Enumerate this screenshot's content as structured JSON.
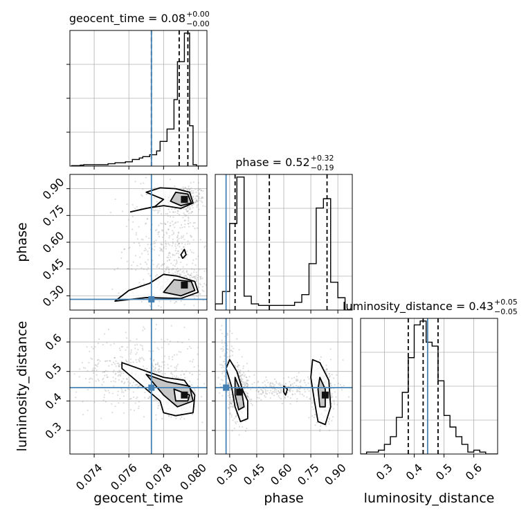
{
  "chart_data": {
    "type": "corner",
    "parameters": [
      {
        "name": "geocent_time",
        "label": "geocent_time",
        "range": [
          0.0726,
          0.0805
        ],
        "ticks": [
          0.074,
          0.076,
          0.078,
          0.08
        ],
        "tick_labels": [
          "0.074",
          "0.076",
          "0.078",
          "0.080"
        ],
        "truth": 0.0773,
        "quantiles": [
          0.0773,
          0.0789,
          0.0794
        ],
        "title_main": "geocent_time = 0.08",
        "title_plus": "+0.00",
        "title_minus": "−0.00",
        "hist_edges": [
          0.0727,
          0.0732,
          0.0734,
          0.0748,
          0.0752,
          0.0758,
          0.0762,
          0.0766,
          0.0768,
          0.0772,
          0.0776,
          0.0778,
          0.0782,
          0.0786,
          0.0788,
          0.0792,
          0.0795,
          0.0797,
          0.0799,
          0.0805
        ],
        "hist_counts": [
          1,
          2,
          3,
          5,
          7,
          9,
          14,
          17,
          20,
          24,
          32,
          52,
          78,
          140,
          220,
          280,
          85,
          3,
          0
        ]
      },
      {
        "name": "phase",
        "label": "phase",
        "range": [
          0.22,
          0.98
        ],
        "ticks": [
          0.3,
          0.45,
          0.6,
          0.75,
          0.9
        ],
        "tick_labels": [
          "0.30",
          "0.45",
          "0.60",
          "0.75",
          "0.90"
        ],
        "truth": 0.28,
        "quantiles": [
          0.33,
          0.52,
          0.84
        ],
        "title_main": "phase = 0.52",
        "title_plus": "+0.32",
        "title_minus": "−0.19",
        "hist_edges": [
          0.22,
          0.26,
          0.3,
          0.34,
          0.38,
          0.42,
          0.46,
          0.5,
          0.54,
          0.58,
          0.62,
          0.66,
          0.7,
          0.74,
          0.78,
          0.82,
          0.86,
          0.9,
          0.94,
          0.98
        ],
        "hist_counts": [
          4,
          12,
          56,
          86,
          9,
          4,
          3,
          3,
          3,
          3,
          3,
          5,
          10,
          30,
          66,
          72,
          18,
          8,
          0
        ]
      },
      {
        "name": "luminosity_distance",
        "label": "luminosity_distance",
        "range": [
          0.22,
          0.68
        ],
        "ticks": [
          0.3,
          0.4,
          0.5,
          0.6
        ],
        "tick_labels": [
          "0.3",
          "0.4",
          "0.5",
          "0.6"
        ],
        "truth": 0.445,
        "quantiles": [
          0.38,
          0.43,
          0.48
        ],
        "title_main": "luminosity_distance = 0.43",
        "title_plus": "+0.05",
        "title_minus": "−0.05",
        "hist_edges": [
          0.22,
          0.24,
          0.26,
          0.28,
          0.3,
          0.32,
          0.34,
          0.36,
          0.38,
          0.4,
          0.42,
          0.44,
          0.46,
          0.48,
          0.5,
          0.52,
          0.54,
          0.56,
          0.58,
          0.6,
          0.62,
          0.64,
          0.66,
          0.68
        ],
        "hist_counts": [
          0,
          1,
          1,
          2,
          5,
          9,
          19,
          32,
          50,
          67,
          69,
          58,
          56,
          38,
          20,
          14,
          9,
          5,
          1,
          2,
          1,
          0,
          0
        ]
      }
    ],
    "pairs": [
      {
        "x": "geocent_time",
        "y": "phase",
        "row": 1,
        "col": 0,
        "density_clusters": [
          {
            "center": [
              0.0792,
              0.84
            ],
            "spread": [
              0.0006,
              0.04
            ],
            "n": 260
          },
          {
            "center": [
              0.0792,
              0.36
            ],
            "spread": [
              0.0006,
              0.04
            ],
            "n": 260
          },
          {
            "center": [
              0.0789,
              0.6
            ],
            "spread": [
              0.0005,
              0.15
            ],
            "n": 180
          },
          {
            "center": [
              0.0775,
              0.55
            ],
            "spread": [
              0.001,
              0.22
            ],
            "n": 260
          }
        ],
        "contours": [
          [
            [
              0.0761,
              0.77
            ],
            [
              0.077,
              0.79
            ],
            [
              0.078,
              0.805
            ],
            [
              0.079,
              0.79
            ],
            [
              0.0797,
              0.82
            ],
            [
              0.0795,
              0.88
            ],
            [
              0.0787,
              0.9
            ],
            [
              0.0778,
              0.905
            ],
            [
              0.077,
              0.88
            ],
            [
              0.078,
              0.84
            ],
            [
              0.0775,
              0.8
            ],
            [
              0.0761,
              0.77
            ]
          ],
          [
            [
              0.0784,
              0.83
            ],
            [
              0.079,
              0.805
            ],
            [
              0.0796,
              0.82
            ],
            [
              0.0794,
              0.87
            ],
            [
              0.0787,
              0.88
            ],
            [
              0.0784,
              0.83
            ]
          ],
          [
            [
              0.0752,
              0.27
            ],
            [
              0.077,
              0.29
            ],
            [
              0.079,
              0.285
            ],
            [
              0.08,
              0.32
            ],
            [
              0.0798,
              0.38
            ],
            [
              0.0788,
              0.41
            ],
            [
              0.078,
              0.42
            ],
            [
              0.0772,
              0.37
            ],
            [
              0.076,
              0.33
            ],
            [
              0.0752,
              0.27
            ]
          ],
          [
            [
              0.078,
              0.32
            ],
            [
              0.079,
              0.3
            ],
            [
              0.0798,
              0.33
            ],
            [
              0.0796,
              0.38
            ],
            [
              0.0786,
              0.39
            ],
            [
              0.078,
              0.32
            ]
          ],
          [
            [
              0.0791,
              0.51
            ],
            [
              0.0793,
              0.53
            ],
            [
              0.0792,
              0.56
            ],
            [
              0.079,
              0.53
            ],
            [
              0.0791,
              0.51
            ]
          ]
        ],
        "peaks": [
          [
            0.0792,
            0.84
          ],
          [
            0.0792,
            0.36
          ]
        ]
      },
      {
        "x": "geocent_time",
        "y": "luminosity_distance",
        "row": 2,
        "col": 0,
        "density_clusters": [
          {
            "center": [
              0.0788,
              0.42
            ],
            "spread": [
              0.0006,
              0.035
            ],
            "n": 320
          },
          {
            "center": [
              0.0765,
              0.5
            ],
            "spread": [
              0.0018,
              0.06
            ],
            "n": 420
          }
        ],
        "contours": [
          [
            [
              0.0756,
              0.53
            ],
            [
              0.0768,
              0.505
            ],
            [
              0.078,
              0.48
            ],
            [
              0.0792,
              0.47
            ],
            [
              0.0798,
              0.42
            ],
            [
              0.0797,
              0.36
            ],
            [
              0.0787,
              0.35
            ],
            [
              0.078,
              0.36
            ],
            [
              0.0778,
              0.4
            ],
            [
              0.0768,
              0.45
            ],
            [
              0.0756,
              0.51
            ],
            [
              0.0756,
              0.53
            ]
          ],
          [
            [
              0.077,
              0.49
            ],
            [
              0.0782,
              0.465
            ],
            [
              0.0795,
              0.45
            ],
            [
              0.0797,
              0.4
            ],
            [
              0.0788,
              0.38
            ],
            [
              0.078,
              0.42
            ],
            [
              0.077,
              0.49
            ]
          ],
          [
            [
              0.0786,
              0.44
            ],
            [
              0.0795,
              0.42
            ],
            [
              0.0794,
              0.4
            ],
            [
              0.0787,
              0.4
            ],
            [
              0.0786,
              0.44
            ]
          ]
        ],
        "peaks": [
          [
            0.0792,
            0.42
          ]
        ]
      },
      {
        "x": "phase",
        "y": "luminosity_distance",
        "row": 2,
        "col": 1,
        "density_clusters": [
          {
            "center": [
              0.35,
              0.43
            ],
            "spread": [
              0.03,
              0.05
            ],
            "n": 320
          },
          {
            "center": [
              0.82,
              0.43
            ],
            "spread": [
              0.03,
              0.05
            ],
            "n": 320
          },
          {
            "center": [
              0.58,
              0.44
            ],
            "spread": [
              0.15,
              0.02
            ],
            "n": 240
          },
          {
            "center": [
              0.28,
              0.55
            ],
            "spread": [
              0.03,
              0.05
            ],
            "n": 80
          }
        ],
        "contours": [
          [
            [
              0.3,
              0.54
            ],
            [
              0.34,
              0.5
            ],
            [
              0.37,
              0.44
            ],
            [
              0.4,
              0.4
            ],
            [
              0.4,
              0.34
            ],
            [
              0.36,
              0.33
            ],
            [
              0.33,
              0.38
            ],
            [
              0.31,
              0.45
            ],
            [
              0.28,
              0.51
            ],
            [
              0.3,
              0.54
            ]
          ],
          [
            [
              0.33,
              0.48
            ],
            [
              0.37,
              0.42
            ],
            [
              0.38,
              0.38
            ],
            [
              0.35,
              0.37
            ],
            [
              0.33,
              0.42
            ],
            [
              0.33,
              0.48
            ]
          ],
          [
            [
              0.76,
              0.54
            ],
            [
              0.8,
              0.53
            ],
            [
              0.85,
              0.47
            ],
            [
              0.86,
              0.38
            ],
            [
              0.83,
              0.32
            ],
            [
              0.79,
              0.33
            ],
            [
              0.77,
              0.4
            ],
            [
              0.75,
              0.48
            ],
            [
              0.76,
              0.54
            ]
          ],
          [
            [
              0.8,
              0.48
            ],
            [
              0.83,
              0.44
            ],
            [
              0.83,
              0.38
            ],
            [
              0.8,
              0.38
            ],
            [
              0.79,
              0.44
            ],
            [
              0.8,
              0.48
            ]
          ],
          [
            [
              0.6,
              0.45
            ],
            [
              0.62,
              0.44
            ],
            [
              0.61,
              0.42
            ],
            [
              0.6,
              0.43
            ],
            [
              0.6,
              0.45
            ]
          ]
        ],
        "peaks": [
          [
            0.355,
            0.43
          ],
          [
            0.83,
            0.42
          ]
        ]
      }
    ],
    "axis_label_visibility": {
      "bottom_row": true,
      "left_column_rows": [
        1,
        2
      ]
    },
    "grid": true,
    "colors": {
      "truth": "#4682b4",
      "contour": "#000000",
      "samples": "#9a9a9a",
      "hist": "#000000"
    }
  }
}
